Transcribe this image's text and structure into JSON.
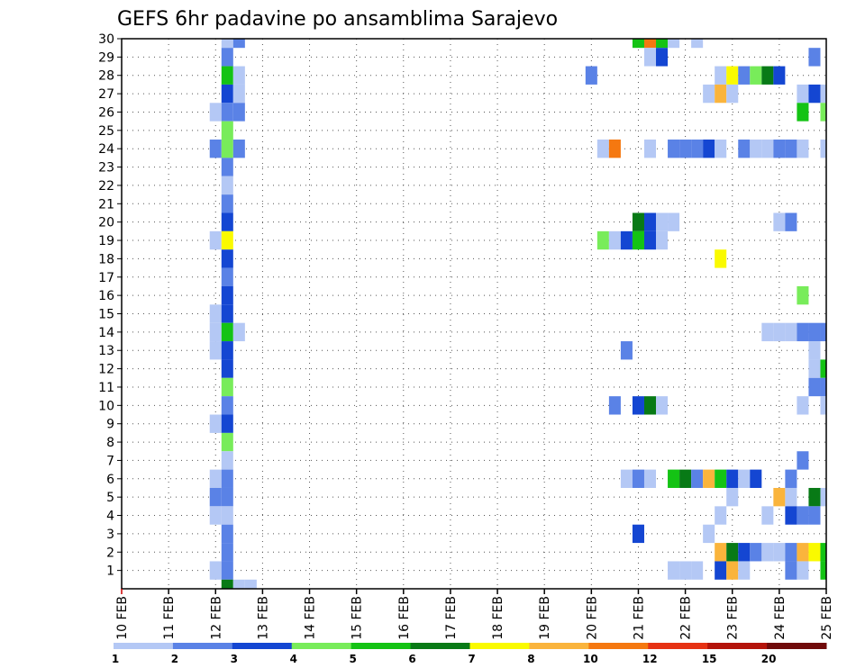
{
  "chart_data": {
    "type": "heatmap",
    "title": "GEFS 6hr padavine po ansamblima Sarajevo",
    "xlabel": "",
    "ylabel": "",
    "x_ticks": [
      "10 FEB",
      "11 FEB",
      "12 FEB",
      "13 FEB",
      "14 FEB",
      "15 FEB",
      "16 FEB",
      "17 FEB",
      "18 FEB",
      "19 FEB",
      "20 FEB",
      "21 FEB",
      "22 FEB",
      "23 FEB",
      "24 FEB",
      "25 FEB"
    ],
    "y_ticks": [
      1,
      2,
      3,
      4,
      5,
      6,
      7,
      8,
      9,
      10,
      11,
      12,
      13,
      14,
      15,
      16,
      17,
      18,
      19,
      20,
      21,
      22,
      23,
      24,
      25,
      26,
      27,
      28,
      29,
      30
    ],
    "x_unit": "days since 10 FEB 00Z (6-hourly steps)",
    "xlim": [
      0,
      15
    ],
    "ylim": [
      0,
      30
    ],
    "grid": true,
    "legend": {
      "position": "bottom",
      "levels": [
        "1",
        "2",
        "3",
        "4",
        "5",
        "6",
        "7",
        "8",
        "10",
        "12",
        "15",
        "20"
      ],
      "colors": [
        "#b4c8f5",
        "#5a82e6",
        "#1446d2",
        "#78ec5a",
        "#14c314",
        "#087a16",
        "#fafa00",
        "#fab43c",
        "#f57810",
        "#e63214",
        "#b4140a",
        "#700a0a"
      ]
    },
    "cells": [
      {
        "x": 2.25,
        "y": 30,
        "c": 1
      },
      {
        "x": 2.5,
        "y": 30,
        "c": 2
      },
      {
        "x": 11.0,
        "y": 30,
        "c": 5
      },
      {
        "x": 11.25,
        "y": 30,
        "c": 9
      },
      {
        "x": 11.5,
        "y": 30,
        "c": 5
      },
      {
        "x": 11.75,
        "y": 30,
        "c": 1
      },
      {
        "x": 12.25,
        "y": 30,
        "c": 1
      },
      {
        "x": 2.25,
        "y": 29,
        "c": 2
      },
      {
        "x": 11.25,
        "y": 29,
        "c": 1
      },
      {
        "x": 11.5,
        "y": 29,
        "c": 3
      },
      {
        "x": 14.75,
        "y": 29,
        "c": 2
      },
      {
        "x": 2.25,
        "y": 28,
        "c": 5
      },
      {
        "x": 2.5,
        "y": 28,
        "c": 1
      },
      {
        "x": 10.0,
        "y": 28,
        "c": 2
      },
      {
        "x": 12.75,
        "y": 28,
        "c": 1
      },
      {
        "x": 13.0,
        "y": 28,
        "c": 7
      },
      {
        "x": 13.25,
        "y": 28,
        "c": 2
      },
      {
        "x": 13.5,
        "y": 28,
        "c": 4
      },
      {
        "x": 13.75,
        "y": 28,
        "c": 6
      },
      {
        "x": 14.0,
        "y": 28,
        "c": 3
      },
      {
        "x": 2.25,
        "y": 27,
        "c": 3
      },
      {
        "x": 2.5,
        "y": 27,
        "c": 1
      },
      {
        "x": 12.5,
        "y": 27,
        "c": 1
      },
      {
        "x": 12.75,
        "y": 27,
        "c": 8
      },
      {
        "x": 13.0,
        "y": 27,
        "c": 1
      },
      {
        "x": 14.5,
        "y": 27,
        "c": 1
      },
      {
        "x": 14.75,
        "y": 27,
        "c": 3
      },
      {
        "x": 15.0,
        "y": 27,
        "c": 1
      },
      {
        "x": 2.0,
        "y": 26,
        "c": 1
      },
      {
        "x": 2.25,
        "y": 26,
        "c": 2
      },
      {
        "x": 2.5,
        "y": 26,
        "c": 2
      },
      {
        "x": 14.5,
        "y": 26,
        "c": 5
      },
      {
        "x": 15.0,
        "y": 26,
        "c": 4
      },
      {
        "x": 2.25,
        "y": 25,
        "c": 4
      },
      {
        "x": 2.0,
        "y": 24,
        "c": 2
      },
      {
        "x": 2.25,
        "y": 24,
        "c": 4
      },
      {
        "x": 2.5,
        "y": 24,
        "c": 2
      },
      {
        "x": 10.25,
        "y": 24,
        "c": 1
      },
      {
        "x": 10.5,
        "y": 24,
        "c": 9
      },
      {
        "x": 11.25,
        "y": 24,
        "c": 1
      },
      {
        "x": 11.75,
        "y": 24,
        "c": 2
      },
      {
        "x": 12.0,
        "y": 24,
        "c": 2
      },
      {
        "x": 12.25,
        "y": 24,
        "c": 2
      },
      {
        "x": 12.5,
        "y": 24,
        "c": 3
      },
      {
        "x": 12.75,
        "y": 24,
        "c": 1
      },
      {
        "x": 13.25,
        "y": 24,
        "c": 2
      },
      {
        "x": 13.5,
        "y": 24,
        "c": 1
      },
      {
        "x": 13.75,
        "y": 24,
        "c": 1
      },
      {
        "x": 14.0,
        "y": 24,
        "c": 2
      },
      {
        "x": 14.25,
        "y": 24,
        "c": 2
      },
      {
        "x": 14.5,
        "y": 24,
        "c": 1
      },
      {
        "x": 15.0,
        "y": 24,
        "c": 1
      },
      {
        "x": 2.25,
        "y": 23,
        "c": 2
      },
      {
        "x": 2.25,
        "y": 22,
        "c": 1
      },
      {
        "x": 2.25,
        "y": 21,
        "c": 2
      },
      {
        "x": 2.25,
        "y": 20,
        "c": 3
      },
      {
        "x": 11.0,
        "y": 20,
        "c": 6
      },
      {
        "x": 11.25,
        "y": 20,
        "c": 3
      },
      {
        "x": 11.5,
        "y": 20,
        "c": 1
      },
      {
        "x": 11.75,
        "y": 20,
        "c": 1
      },
      {
        "x": 14.0,
        "y": 20,
        "c": 1
      },
      {
        "x": 14.25,
        "y": 20,
        "c": 2
      },
      {
        "x": 2.0,
        "y": 19,
        "c": 1
      },
      {
        "x": 2.25,
        "y": 19,
        "c": 7
      },
      {
        "x": 10.25,
        "y": 19,
        "c": 4
      },
      {
        "x": 10.5,
        "y": 19,
        "c": 1
      },
      {
        "x": 10.75,
        "y": 19,
        "c": 3
      },
      {
        "x": 11.0,
        "y": 19,
        "c": 5
      },
      {
        "x": 11.25,
        "y": 19,
        "c": 3
      },
      {
        "x": 11.5,
        "y": 19,
        "c": 1
      },
      {
        "x": 2.25,
        "y": 18,
        "c": 3
      },
      {
        "x": 12.75,
        "y": 18,
        "c": 7
      },
      {
        "x": 2.25,
        "y": 17,
        "c": 2
      },
      {
        "x": 2.25,
        "y": 16,
        "c": 3
      },
      {
        "x": 14.5,
        "y": 16,
        "c": 4
      },
      {
        "x": 2.0,
        "y": 15,
        "c": 1
      },
      {
        "x": 2.25,
        "y": 15,
        "c": 3
      },
      {
        "x": 2.0,
        "y": 14,
        "c": 1
      },
      {
        "x": 2.25,
        "y": 14,
        "c": 5
      },
      {
        "x": 2.5,
        "y": 14,
        "c": 1
      },
      {
        "x": 13.75,
        "y": 14,
        "c": 1
      },
      {
        "x": 14.0,
        "y": 14,
        "c": 1
      },
      {
        "x": 14.25,
        "y": 14,
        "c": 1
      },
      {
        "x": 14.5,
        "y": 14,
        "c": 2
      },
      {
        "x": 14.75,
        "y": 14,
        "c": 2
      },
      {
        "x": 15.0,
        "y": 14,
        "c": 2
      },
      {
        "x": 2.0,
        "y": 13,
        "c": 1
      },
      {
        "x": 2.25,
        "y": 13,
        "c": 3
      },
      {
        "x": 10.75,
        "y": 13,
        "c": 2
      },
      {
        "x": 14.75,
        "y": 13,
        "c": 1
      },
      {
        "x": 2.25,
        "y": 12,
        "c": 3
      },
      {
        "x": 14.75,
        "y": 12,
        "c": 1
      },
      {
        "x": 15.0,
        "y": 12,
        "c": 5
      },
      {
        "x": 2.25,
        "y": 11,
        "c": 4
      },
      {
        "x": 14.75,
        "y": 11,
        "c": 2
      },
      {
        "x": 15.0,
        "y": 11,
        "c": 2
      },
      {
        "x": 2.25,
        "y": 10,
        "c": 2
      },
      {
        "x": 10.5,
        "y": 10,
        "c": 2
      },
      {
        "x": 11.0,
        "y": 10,
        "c": 3
      },
      {
        "x": 11.25,
        "y": 10,
        "c": 6
      },
      {
        "x": 11.5,
        "y": 10,
        "c": 1
      },
      {
        "x": 14.5,
        "y": 10,
        "c": 1
      },
      {
        "x": 15.0,
        "y": 10,
        "c": 1
      },
      {
        "x": 2.0,
        "y": 9,
        "c": 1
      },
      {
        "x": 2.25,
        "y": 9,
        "c": 3
      },
      {
        "x": 2.25,
        "y": 8,
        "c": 4
      },
      {
        "x": 2.25,
        "y": 7,
        "c": 1
      },
      {
        "x": 14.5,
        "y": 7,
        "c": 2
      },
      {
        "x": 2.0,
        "y": 6,
        "c": 1
      },
      {
        "x": 2.25,
        "y": 6,
        "c": 2
      },
      {
        "x": 10.75,
        "y": 6,
        "c": 1
      },
      {
        "x": 11.0,
        "y": 6,
        "c": 2
      },
      {
        "x": 11.25,
        "y": 6,
        "c": 1
      },
      {
        "x": 11.75,
        "y": 6,
        "c": 5
      },
      {
        "x": 12.0,
        "y": 6,
        "c": 6
      },
      {
        "x": 12.25,
        "y": 6,
        "c": 2
      },
      {
        "x": 12.5,
        "y": 6,
        "c": 8
      },
      {
        "x": 12.75,
        "y": 6,
        "c": 5
      },
      {
        "x": 13.0,
        "y": 6,
        "c": 3
      },
      {
        "x": 13.25,
        "y": 6,
        "c": 1
      },
      {
        "x": 13.5,
        "y": 6,
        "c": 3
      },
      {
        "x": 14.25,
        "y": 6,
        "c": 2
      },
      {
        "x": 2.0,
        "y": 5,
        "c": 2
      },
      {
        "x": 2.25,
        "y": 5,
        "c": 2
      },
      {
        "x": 13.0,
        "y": 5,
        "c": 1
      },
      {
        "x": 14.0,
        "y": 5,
        "c": 8
      },
      {
        "x": 14.25,
        "y": 5,
        "c": 1
      },
      {
        "x": 14.75,
        "y": 5,
        "c": 6
      },
      {
        "x": 15.0,
        "y": 5,
        "c": 1
      },
      {
        "x": 2.0,
        "y": 4,
        "c": 1
      },
      {
        "x": 2.25,
        "y": 4,
        "c": 1
      },
      {
        "x": 12.75,
        "y": 4,
        "c": 1
      },
      {
        "x": 13.75,
        "y": 4,
        "c": 1
      },
      {
        "x": 14.25,
        "y": 4,
        "c": 3
      },
      {
        "x": 14.5,
        "y": 4,
        "c": 2
      },
      {
        "x": 14.75,
        "y": 4,
        "c": 2
      },
      {
        "x": 2.25,
        "y": 3,
        "c": 2
      },
      {
        "x": 11.0,
        "y": 3,
        "c": 3
      },
      {
        "x": 12.5,
        "y": 3,
        "c": 1
      },
      {
        "x": 2.25,
        "y": 2,
        "c": 2
      },
      {
        "x": 12.75,
        "y": 2,
        "c": 8
      },
      {
        "x": 13.0,
        "y": 2,
        "c": 6
      },
      {
        "x": 13.25,
        "y": 2,
        "c": 3
      },
      {
        "x": 13.5,
        "y": 2,
        "c": 2
      },
      {
        "x": 13.75,
        "y": 2,
        "c": 1
      },
      {
        "x": 14.0,
        "y": 2,
        "c": 1
      },
      {
        "x": 14.25,
        "y": 2,
        "c": 2
      },
      {
        "x": 14.5,
        "y": 2,
        "c": 8
      },
      {
        "x": 14.75,
        "y": 2,
        "c": 7
      },
      {
        "x": 15.0,
        "y": 2,
        "c": 5
      },
      {
        "x": 2.0,
        "y": 1,
        "c": 1
      },
      {
        "x": 2.25,
        "y": 1,
        "c": 2
      },
      {
        "x": 11.75,
        "y": 1,
        "c": 1
      },
      {
        "x": 12.0,
        "y": 1,
        "c": 1
      },
      {
        "x": 12.25,
        "y": 1,
        "c": 1
      },
      {
        "x": 12.75,
        "y": 1,
        "c": 3
      },
      {
        "x": 13.0,
        "y": 1,
        "c": 8
      },
      {
        "x": 13.25,
        "y": 1,
        "c": 1
      },
      {
        "x": 14.25,
        "y": 1,
        "c": 2
      },
      {
        "x": 14.5,
        "y": 1,
        "c": 1
      },
      {
        "x": 15.0,
        "y": 1,
        "c": 5
      },
      {
        "x": 2.25,
        "y": 0,
        "c": 6
      },
      {
        "x": 2.5,
        "y": 0,
        "c": 1
      },
      {
        "x": 2.75,
        "y": 0,
        "c": 1
      }
    ]
  }
}
